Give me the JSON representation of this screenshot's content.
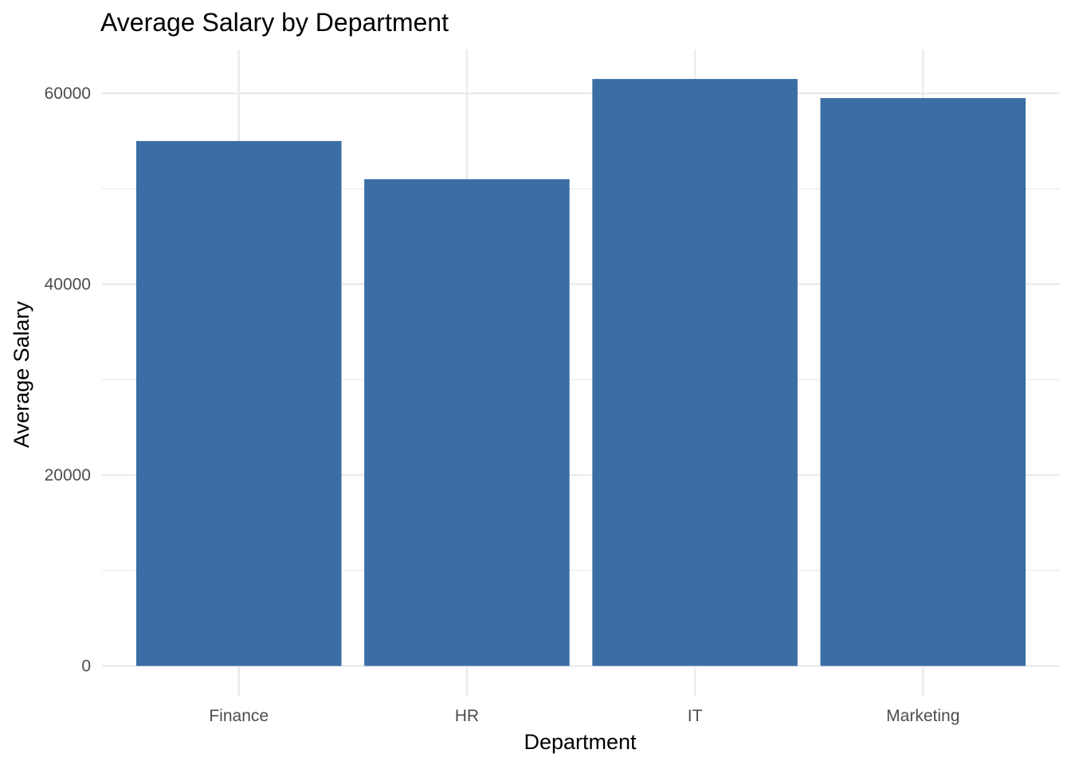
{
  "chart_data": {
    "type": "bar",
    "title": "Average Salary by Department",
    "xlabel": "Department",
    "ylabel": "Average Salary",
    "categories": [
      "Finance",
      "HR",
      "IT",
      "Marketing"
    ],
    "values": [
      55000,
      51000,
      61500,
      59500
    ],
    "ylim": [
      -3200,
      64600
    ],
    "yticks": [
      0,
      20000,
      40000,
      60000
    ],
    "ytick_labels": [
      "0",
      "20000",
      "40000",
      "60000"
    ],
    "grid": true,
    "legend": "none",
    "colors": {
      "bar": "#3A6EA5",
      "grid": "#EBEBEB",
      "tick_text": "#4D4D4D",
      "title_text": "#000000"
    }
  }
}
